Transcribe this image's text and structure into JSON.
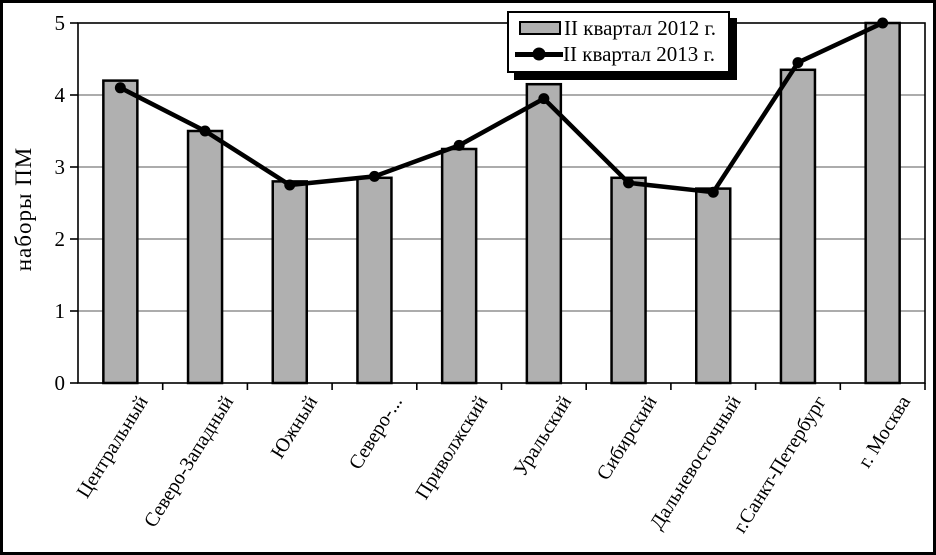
{
  "chart_data": {
    "type": "bar",
    "ylabel": "наборы ПМ",
    "ylim": [
      0,
      5
    ],
    "yticks": [
      0,
      1,
      2,
      3,
      4,
      5
    ],
    "grid": true,
    "legend_position": "top-right",
    "categories": [
      "Центральный",
      "Северо-Западный",
      "Южный",
      "Северо-...",
      "Приволжский",
      "Уральский",
      "Сибирский",
      "Дальневосточный",
      "г.Санкт-Петербург",
      "г. Москва"
    ],
    "series": [
      {
        "name": "II квартал 2012 г.",
        "type": "bar",
        "values": [
          4.2,
          3.5,
          2.8,
          2.85,
          3.25,
          4.15,
          2.85,
          2.7,
          4.35,
          5.0
        ]
      },
      {
        "name": "II квартал 2013 г.",
        "type": "line",
        "values": [
          4.1,
          3.5,
          2.75,
          2.87,
          3.3,
          3.95,
          2.78,
          2.65,
          4.45,
          5.0
        ]
      }
    ],
    "colors": {
      "bar_fill": "#b0b0b0",
      "bar_border": "#000000",
      "line": "#000000",
      "grid": "#595959",
      "frame": "#000000"
    }
  }
}
